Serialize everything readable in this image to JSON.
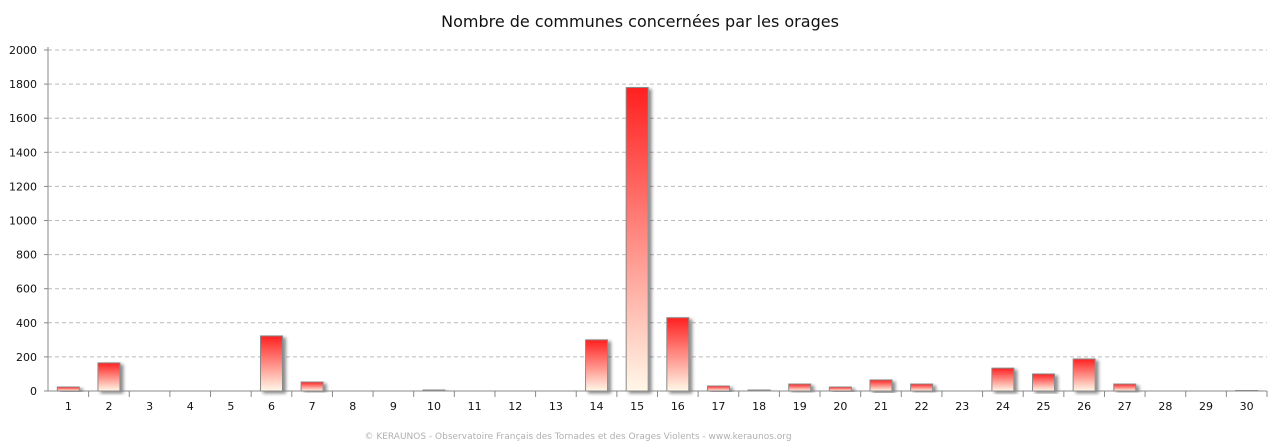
{
  "chart_data": {
    "type": "bar",
    "title": "Nombre de communes concernées par les orages",
    "xlabel": "",
    "ylabel": "",
    "categories": [
      "1",
      "2",
      "3",
      "4",
      "5",
      "6",
      "7",
      "8",
      "9",
      "10",
      "11",
      "12",
      "13",
      "14",
      "15",
      "16",
      "17",
      "18",
      "19",
      "20",
      "21",
      "22",
      "23",
      "24",
      "25",
      "26",
      "27",
      "28",
      "29",
      "30"
    ],
    "values": [
      24,
      165,
      0,
      0,
      0,
      323,
      53,
      1,
      0,
      6,
      0,
      0,
      0,
      300,
      1780,
      430,
      30,
      6,
      41,
      24,
      65,
      41,
      0,
      134,
      100,
      188,
      41,
      1,
      1,
      5
    ],
    "ylim": [
      0,
      2000
    ],
    "yticks": [
      0,
      200,
      400,
      600,
      800,
      1000,
      1200,
      1400,
      1600,
      1800,
      2000
    ],
    "grid": true,
    "bar_gradient": [
      "#ff2020",
      "#fff8e8"
    ],
    "footer": "© KERAUNOS - Observatoire Français des Tornades et des Orages Violents - www.keraunos.org"
  }
}
